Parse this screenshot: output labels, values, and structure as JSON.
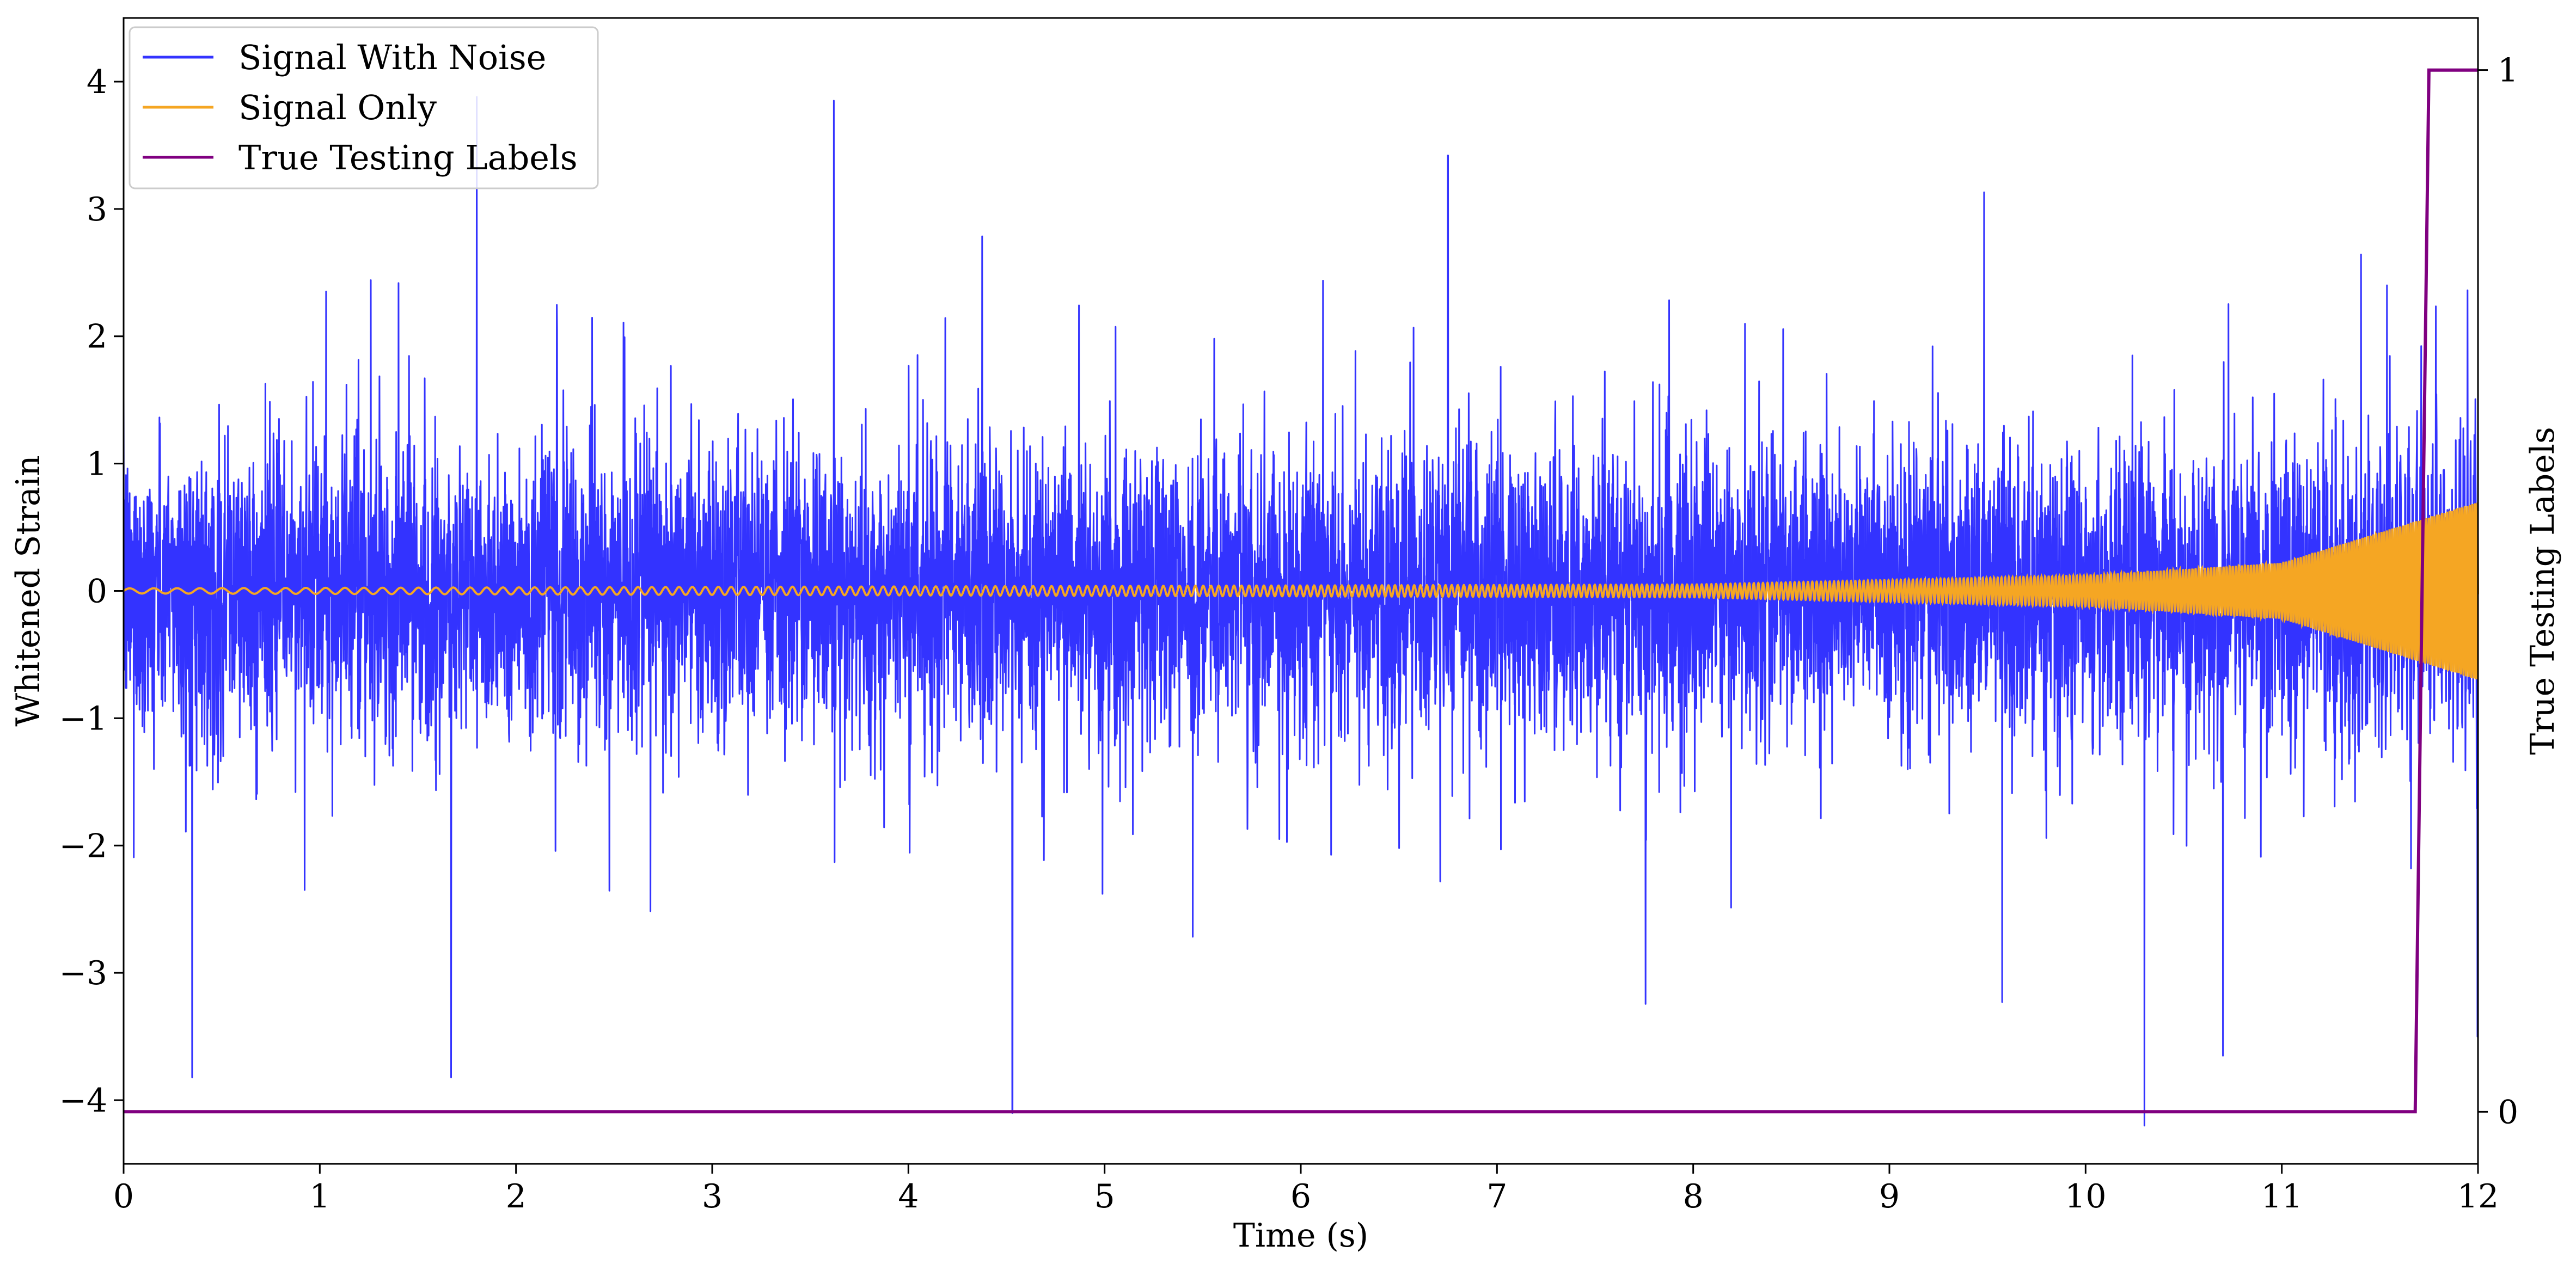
{
  "chart_data": {
    "type": "line",
    "xlabel": "Time (s)",
    "ylabel_left": "Whitened Strain",
    "ylabel_right": "True Testing Labels",
    "xlim": [
      0,
      12
    ],
    "ylim_left": [
      -4.5,
      4.5
    ],
    "ylim_right": [
      -0.05,
      1.05
    ],
    "x_ticks": [
      "0",
      "1",
      "2",
      "3",
      "4",
      "5",
      "6",
      "7",
      "8",
      "9",
      "10",
      "11",
      "12"
    ],
    "y_left_ticks": [
      "−4",
      "−3",
      "−2",
      "−1",
      "0",
      "1",
      "2",
      "3",
      "4"
    ],
    "y_right_ticks": [
      "0",
      "1"
    ],
    "grid": false,
    "legend_position": "top-left",
    "series": [
      {
        "name": "Signal With Noise",
        "color": "#3333ff",
        "axis": "left",
        "description": "broadband noise around 0 with typical amplitude about ±1.5, occasional peaks near ±4",
        "notable_peaks": [
          {
            "x": 0.35,
            "y": -3.82
          },
          {
            "x": 1.67,
            "y": -3.82
          },
          {
            "x": 1.8,
            "y": 3.88
          },
          {
            "x": 3.62,
            "y": 3.85
          },
          {
            "x": 4.53,
            "y": -4.1
          },
          {
            "x": 6.75,
            "y": 3.42
          },
          {
            "x": 10.3,
            "y": -4.2
          },
          {
            "x": 10.7,
            "y": -3.65
          }
        ]
      },
      {
        "name": "Signal Only",
        "color": "#f5a623",
        "axis": "left",
        "description": "chirp with frequency and amplitude increasing over time",
        "envelope": [
          {
            "x": 0,
            "amp": 0.02
          },
          {
            "x": 8,
            "amp": 0.05
          },
          {
            "x": 10,
            "amp": 0.12
          },
          {
            "x": 11,
            "amp": 0.22
          },
          {
            "x": 12,
            "amp": 0.7
          }
        ]
      },
      {
        "name": "True Testing Labels",
        "color": "#800080",
        "axis": "right",
        "x": [
          0,
          11.68,
          11.75,
          12
        ],
        "y": [
          0,
          0,
          1,
          1
        ]
      }
    ]
  }
}
